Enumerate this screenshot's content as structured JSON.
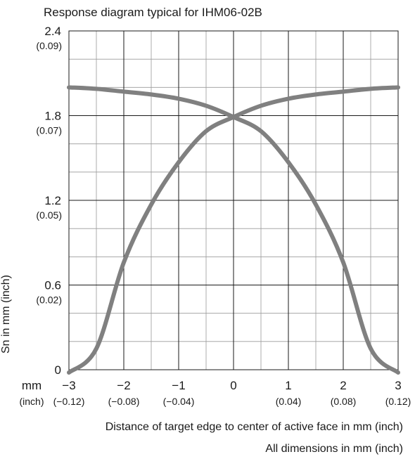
{
  "chart_data": {
    "type": "line",
    "title": "Response diagram typical for IHM06-02B",
    "xlabel": "Distance of target edge to center of active face in mm (inch)",
    "ylabel": "Sn in mm (inch)",
    "footnote": "All dimensions in mm (inch)",
    "x_unit_mm": "mm",
    "x_unit_inch": "(inch)",
    "xlim": [
      -3,
      3
    ],
    "ylim": [
      0,
      2.4
    ],
    "grid": true,
    "x_ticks": [
      {
        "value": -3,
        "mm": "−3",
        "inch": "(−0.12)"
      },
      {
        "value": -2,
        "mm": "−2",
        "inch": "(−0.08)"
      },
      {
        "value": -1,
        "mm": "−1",
        "inch": "(−0.04)"
      },
      {
        "value": 0,
        "mm": "0",
        "inch": ""
      },
      {
        "value": 1,
        "mm": "1",
        "inch": "(0.04)"
      },
      {
        "value": 2,
        "mm": "2",
        "inch": "(0.08)"
      },
      {
        "value": 3,
        "mm": "3",
        "inch": "(0.12)"
      }
    ],
    "y_ticks": [
      {
        "value": 0,
        "mm": "0",
        "inch": ""
      },
      {
        "value": 0.6,
        "mm": "0.6",
        "inch": "(0.02)"
      },
      {
        "value": 1.2,
        "mm": "1.2",
        "inch": "(0.05)"
      },
      {
        "value": 1.8,
        "mm": "1.8",
        "inch": "(0.07)"
      },
      {
        "value": 2.4,
        "mm": "2.4",
        "inch": "(0.09)"
      }
    ],
    "line_color": "#808080",
    "series": [
      {
        "x": [
          -3,
          -2.5,
          -2,
          -1.5,
          -1,
          -0.5,
          0,
          0.5,
          1,
          1.5,
          2,
          2.5,
          3
        ],
        "y": [
          2.0,
          1.99,
          1.97,
          1.95,
          1.92,
          1.87,
          1.79,
          1.69,
          1.47,
          1.17,
          0.76,
          0.15,
          -0.02
        ]
      },
      {
        "x": [
          -3,
          -2.5,
          -2,
          -1.5,
          -1,
          -0.5,
          0,
          0.5,
          1,
          1.5,
          2,
          2.5,
          3
        ],
        "y": [
          -0.02,
          0.15,
          0.76,
          1.17,
          1.47,
          1.69,
          1.79,
          1.87,
          1.92,
          1.95,
          1.97,
          1.99,
          2.0
        ]
      }
    ]
  }
}
